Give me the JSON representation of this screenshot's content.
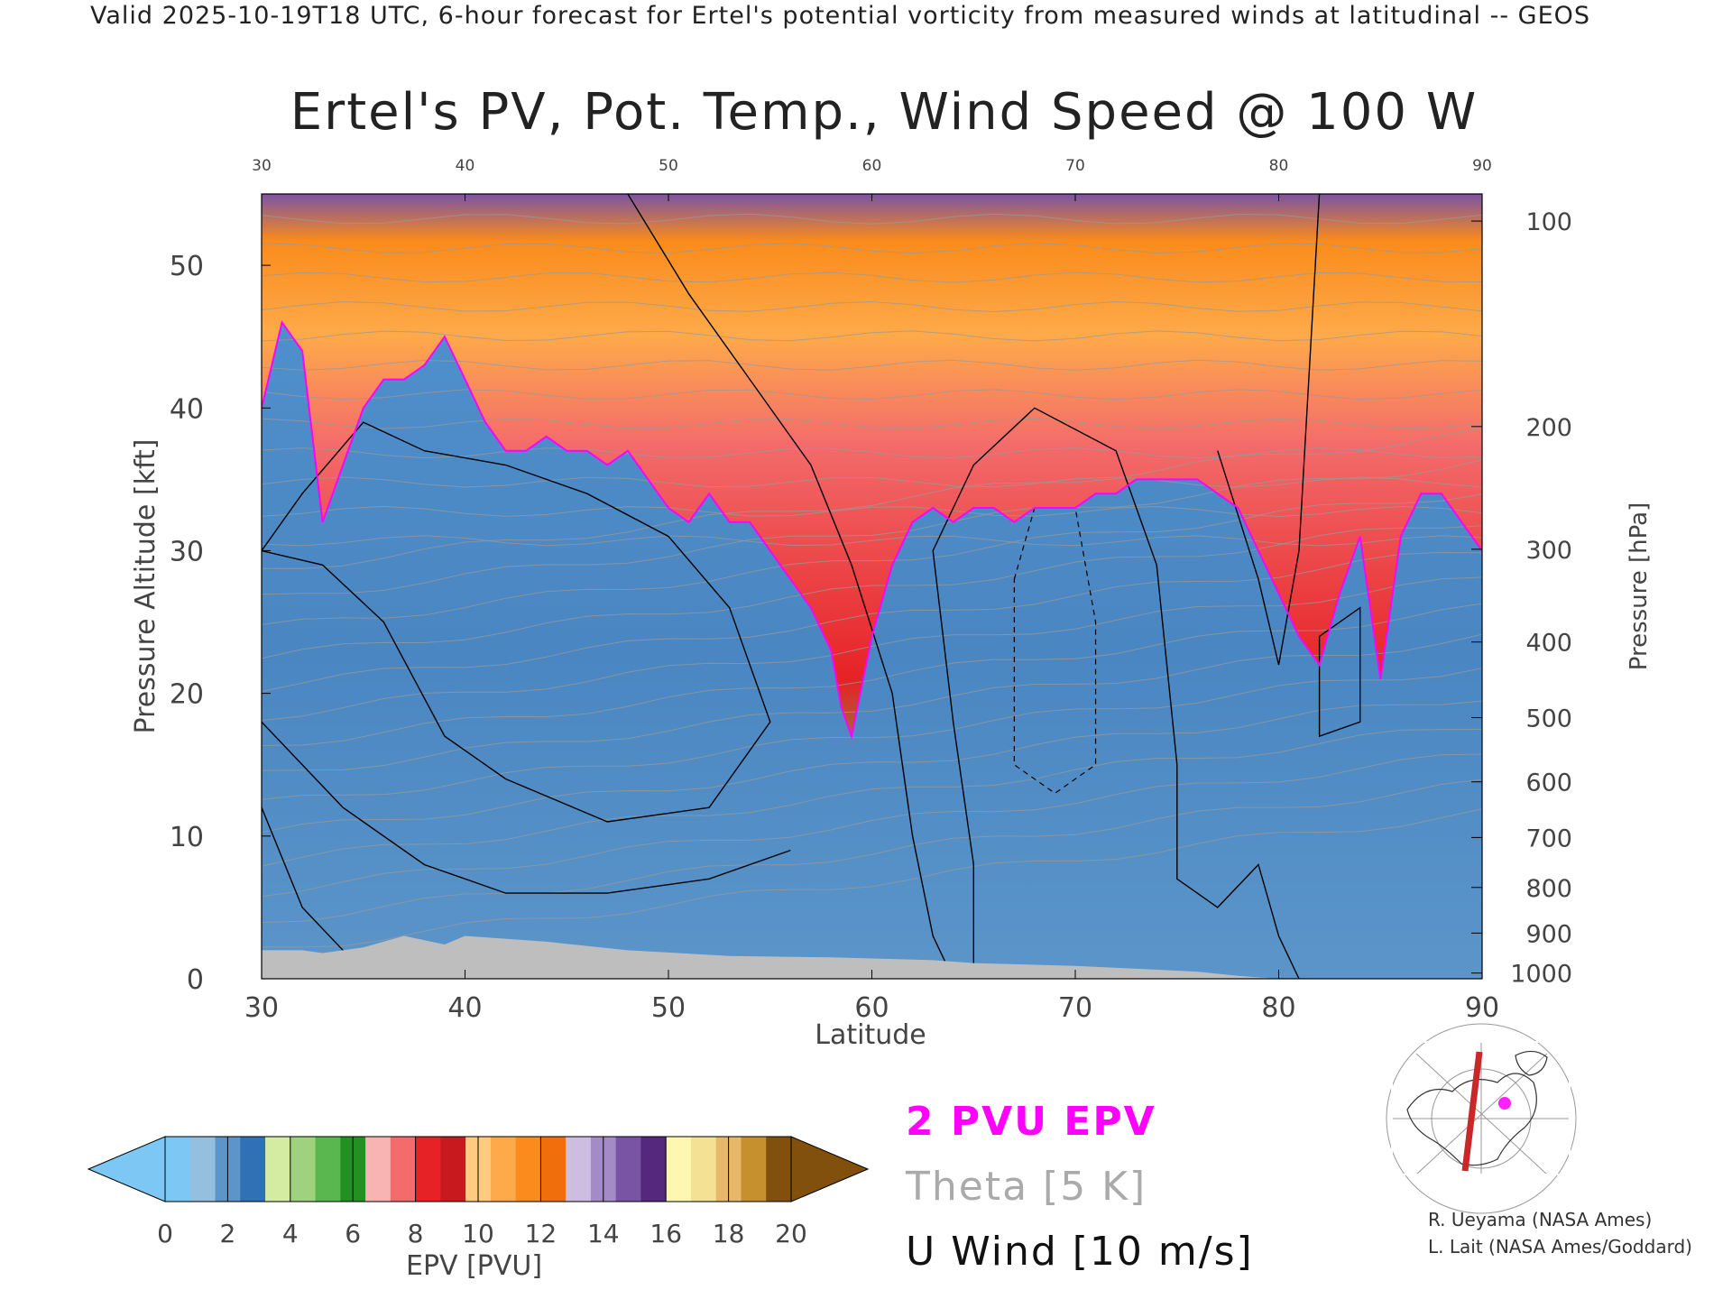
{
  "header": {
    "caption": "Valid 2025-10-19T18 UTC, 6-hour forecast for Ertel's potential vorticity from measured winds at latitudinal -- GEOS",
    "title": "Ertel's PV, Pot. Temp., Wind Speed @ 100 W"
  },
  "chart_data": {
    "type": "heatmap",
    "title": "Ertel's PV, Pot. Temp., Wind Speed @ 100 W",
    "xlabel": "Latitude",
    "ylabel": "Pressure Altitude [kft]",
    "y2label": "Pressure [hPa]",
    "xlim": [
      30,
      90
    ],
    "ylim": [
      0,
      55
    ],
    "x_ticks": [
      30,
      40,
      50,
      60,
      70,
      80,
      90
    ],
    "y_ticks": [
      0,
      10,
      20,
      30,
      40,
      50
    ],
    "pressure_ticks": [
      {
        "label": "100",
        "kft": 53.1
      },
      {
        "label": "200",
        "kft": 38.7
      },
      {
        "label": "300",
        "kft": 30.1
      },
      {
        "label": "400",
        "kft": 23.6
      },
      {
        "label": "500",
        "kft": 18.3
      },
      {
        "label": "600",
        "kft": 13.8
      },
      {
        "label": "700",
        "kft": 9.9
      },
      {
        "label": "800",
        "kft": 6.4
      },
      {
        "label": "900",
        "kft": 3.2
      },
      {
        "label": "1000",
        "kft": 0.4
      }
    ],
    "pv_2pvu_tropopause": {
      "lat": [
        30,
        31,
        32,
        33,
        34,
        35,
        36,
        37,
        38,
        39,
        40,
        41,
        42,
        43,
        44,
        45,
        46,
        47,
        48,
        49,
        50,
        51,
        52,
        53,
        54,
        55,
        56,
        57,
        58,
        58.5,
        59,
        60,
        61,
        62,
        63,
        64,
        65,
        66,
        67,
        68,
        69,
        70,
        71,
        72,
        73,
        74,
        75,
        76,
        77,
        78,
        79,
        80,
        81,
        82,
        83,
        84,
        85,
        86,
        87,
        88,
        89,
        90
      ],
      "kft": [
        40,
        46,
        44,
        32,
        36,
        40,
        42,
        42,
        43,
        45,
        42,
        39,
        37,
        37,
        38,
        37,
        37,
        36,
        37,
        35,
        33,
        32,
        34,
        32,
        32,
        30,
        28,
        26,
        23,
        19,
        17,
        24,
        29,
        32,
        33,
        32,
        33,
        33,
        32,
        33,
        33,
        33,
        34,
        34,
        35,
        35,
        35,
        35,
        34,
        33,
        30,
        27,
        24,
        22,
        27,
        31,
        21,
        31,
        34,
        34,
        32,
        30
      ]
    },
    "pv_colorbar": {
      "label": "EPV [PVU]",
      "ticks": [
        0,
        2,
        4,
        6,
        8,
        10,
        12,
        14,
        16,
        18,
        20
      ],
      "colors": [
        "#7dc7f5",
        "#94bfdf",
        "#5b95c9",
        "#2f71b4",
        "#d4eba2",
        "#9ed27e",
        "#5ab64e",
        "#239023",
        "#f8b3b3",
        "#f36b6b",
        "#e62226",
        "#c81a1e",
        "#fecb80",
        "#feaa4a",
        "#fa8b1c",
        "#f06e0b",
        "#cdbde0",
        "#a48ac6",
        "#7a54a4",
        "#55287e",
        "#fdf7b2",
        "#f4e193",
        "#e7b76a",
        "#c7902f",
        "#80500c"
      ],
      "under_color": "#7dc7f5",
      "over_color": "#80500c"
    },
    "u_wind_contours": [
      "-10",
      "0",
      "10",
      "20",
      "30"
    ],
    "theta_contour_interval": "5 K",
    "terrain_color": "#bebebe"
  },
  "legend": {
    "pv_line": "2 PVU EPV",
    "theta": "Theta [5 K]",
    "u_wind": "U Wind [10 m/s]"
  },
  "credits": {
    "line1": "R. Ueyama (NASA Ames)",
    "line2": "L. Lait (NASA Ames/Goddard)"
  },
  "colors": {
    "pv_line": "#ff00ff",
    "theta": "#9a9a9a",
    "wind": "#000000",
    "section_line": "#c82828"
  }
}
